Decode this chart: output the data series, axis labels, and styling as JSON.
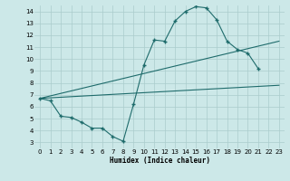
{
  "xlabel": "Humidex (Indice chaleur)",
  "bg_color": "#cce8e8",
  "grid_color": "#aacccc",
  "line_color": "#1e6b6b",
  "xlim": [
    -0.5,
    23.5
  ],
  "ylim": [
    2.5,
    14.5
  ],
  "xticks": [
    0,
    1,
    2,
    3,
    4,
    5,
    6,
    7,
    8,
    9,
    10,
    11,
    12,
    13,
    14,
    15,
    16,
    17,
    18,
    19,
    20,
    21,
    22,
    23
  ],
  "yticks": [
    3,
    4,
    5,
    6,
    7,
    8,
    9,
    10,
    11,
    12,
    13,
    14
  ],
  "curve_x": [
    0,
    1,
    2,
    3,
    4,
    5,
    6,
    7,
    8,
    9,
    10,
    11,
    12,
    13,
    14,
    15,
    16,
    17,
    18,
    19,
    20,
    21
  ],
  "curve_y": [
    6.7,
    6.5,
    5.2,
    5.1,
    4.7,
    4.2,
    4.2,
    3.5,
    3.1,
    6.2,
    9.5,
    11.6,
    11.5,
    13.2,
    14.0,
    14.4,
    14.3,
    13.3,
    11.5,
    10.8,
    10.5,
    9.2
  ],
  "line1_x": [
    0,
    23
  ],
  "line1_y": [
    6.7,
    7.8
  ],
  "line2_x": [
    0,
    23
  ],
  "line2_y": [
    6.7,
    11.5
  ]
}
